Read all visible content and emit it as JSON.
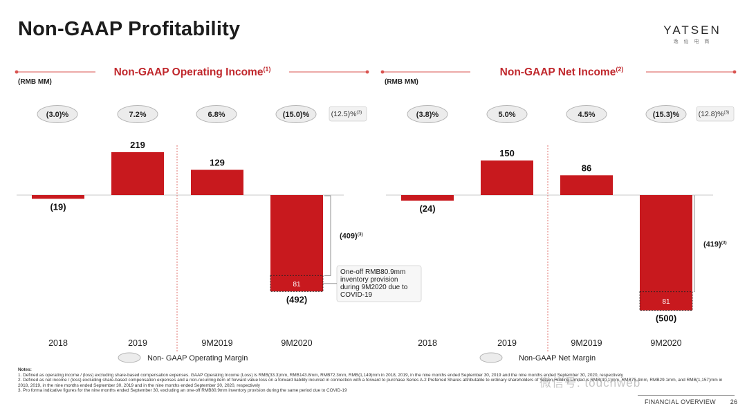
{
  "page": {
    "title": "Non-GAAP Profitability",
    "logo": "YATSEN",
    "logo_sub": "逸 仙 电 商",
    "footer_label": "FINANCIAL OVERVIEW",
    "page_number": "26",
    "watermark": "微信号: touchweb",
    "notes_heading": "Notes:",
    "notes": [
      "1. Defined as operating income / (loss) excluding share-based compensation expenses. GAAP Operating Income (Loss) is RMB(33.3)mm, RMB143.8mm, RMB72.3mm, RMB(1,149)mm in 2018, 2019, in the nine months ended September 30, 2019 and the nine months ended September 30, 2020, respectively",
      "2. Defined as net income / (loss) excluding share-based compensation expenses and a non-recurring item of forward value loss on a forward liability incurred in connection with a forward to purchase Series A-2 Preferred Shares attributable to ordinary shareholders of Yatsen Holding Limited is RMB(40.1)mm, RMB75.4mm, RMB29.1mm, and RMB(1,157)mm in 2018, 2019, in the nine months ended September 30, 2019 and in the nine months ended September 30, 2020, respectively",
      "3. Pro forma indicative figures for the nine months ended September 30, excluding an one-off RMB80.9mm inventory provision during the same period due to COVID-19"
    ]
  },
  "chart_data": [
    {
      "type": "bar",
      "title": "Non-GAAP Operating Income",
      "title_sup": "(1)",
      "unit_label": "(RMB MM)",
      "categories": [
        "2018",
        "2019",
        "9M2019",
        "9M2020"
      ],
      "values": [
        -19,
        219,
        129,
        -492
      ],
      "value_labels": [
        "(19)",
        "219",
        "129",
        "(492)"
      ],
      "margins": [
        "(3.0)%",
        "7.2%",
        "6.8%",
        "(15.0)%"
      ],
      "pro_forma_margin": "(12.5)%",
      "pro_forma_margin_sup": "(3)",
      "segment": {
        "category": "9M2020",
        "value": 81,
        "label": "81"
      },
      "bracket_label": "(409)",
      "bracket_sup": "(3)",
      "callout": "One-off RMB80.9mm inventory provision during 9M2020 due to COVID-19",
      "callout_lines": [
        "One-off RMB80.9mm",
        "inventory provision",
        "during 9M2020 due to",
        "COVID-19"
      ],
      "legend": "Non- GAAP Operating Margin",
      "ylim": [
        -520,
        240
      ]
    },
    {
      "type": "bar",
      "title": "Non-GAAP Net Income",
      "title_sup": "(2)",
      "unit_label": "(RMB MM)",
      "categories": [
        "2018",
        "2019",
        "9M2019",
        "9M2020"
      ],
      "values": [
        -24,
        150,
        86,
        -500
      ],
      "value_labels": [
        "(24)",
        "150",
        "86",
        "(500)"
      ],
      "margins": [
        "(3.8)%",
        "5.0%",
        "4.5%",
        "(15.3)%"
      ],
      "pro_forma_margin": "(12.8)%",
      "pro_forma_margin_sup": "(3)",
      "segment": {
        "category": "9M2020",
        "value": 81,
        "label": "81"
      },
      "bracket_label": "(419)",
      "bracket_sup": "(3)",
      "legend": "Non-GAAP Net Margin",
      "ylim": [
        -520,
        240
      ]
    }
  ],
  "colors": {
    "bar": "#c8191e",
    "accent_line": "#d9534f",
    "title_red": "#c0282d",
    "pill_fill": "#ececec",
    "pill_stroke": "#b5b5b5"
  }
}
